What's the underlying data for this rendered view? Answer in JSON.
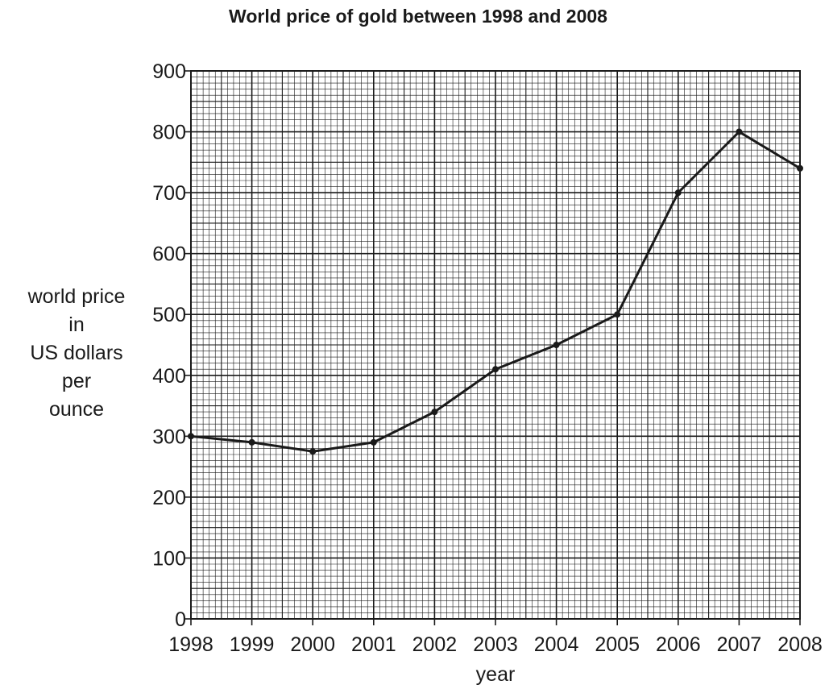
{
  "chart_data": {
    "type": "line",
    "title": "World price of gold between 1998 and 2008",
    "xlabel": "year",
    "ylabel_lines": [
      "world price",
      "in",
      "US dollars",
      "per",
      "ounce"
    ],
    "x": [
      1998,
      1999,
      2000,
      2001,
      2002,
      2003,
      2004,
      2005,
      2006,
      2007,
      2008
    ],
    "x_tick_labels": [
      "1998",
      "1999",
      "2000",
      "2001",
      "2002",
      "2003",
      "2004",
      "2005",
      "2006",
      "2007",
      "2008"
    ],
    "series": [
      {
        "values": [
          300,
          290,
          275,
          290,
          340,
          410,
          450,
          500,
          700,
          800,
          740
        ]
      }
    ],
    "xlim": [
      1998,
      2008
    ],
    "ylim": [
      0,
      900
    ],
    "y_ticks": [
      0,
      100,
      200,
      300,
      400,
      500,
      600,
      700,
      800,
      900
    ],
    "y_tick_labels": [
      "0",
      "100",
      "200",
      "300",
      "400",
      "500",
      "600",
      "700",
      "800",
      "900"
    ],
    "grid": true,
    "markers": true,
    "line_color": "#1a1a1a",
    "grid_color": "#1a1a1a"
  }
}
